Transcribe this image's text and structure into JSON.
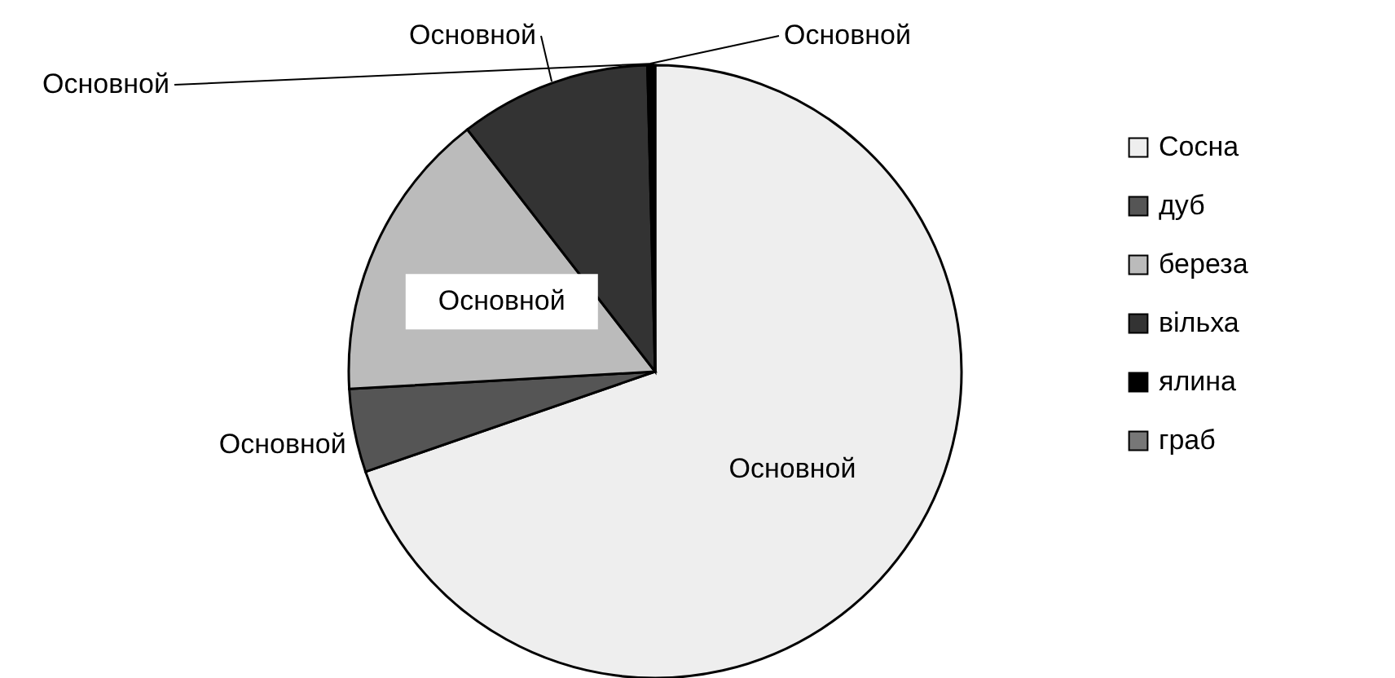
{
  "chart_data": {
    "type": "pie",
    "categories": [
      "Сосна",
      "дуб",
      "береза",
      "вільха",
      "ялина",
      "граб"
    ],
    "values": [
      69.7,
      4.4,
      15.4,
      10.1,
      0.3,
      0.1
    ],
    "colors": [
      "#eeeeee",
      "#555555",
      "#bbbbbb",
      "#333333",
      "#000000",
      "#777777"
    ],
    "annotations": [
      {
        "text": "Основной",
        "x": "Сосна"
      },
      {
        "text": "Основной",
        "x": "дуб"
      },
      {
        "text": "Основной",
        "x": "береза"
      },
      {
        "text": "Основной",
        "x": "вільха"
      },
      {
        "text": "Основной",
        "x": "ялина"
      },
      {
        "text": "Основной",
        "x": "граб"
      }
    ],
    "legend": "right"
  }
}
